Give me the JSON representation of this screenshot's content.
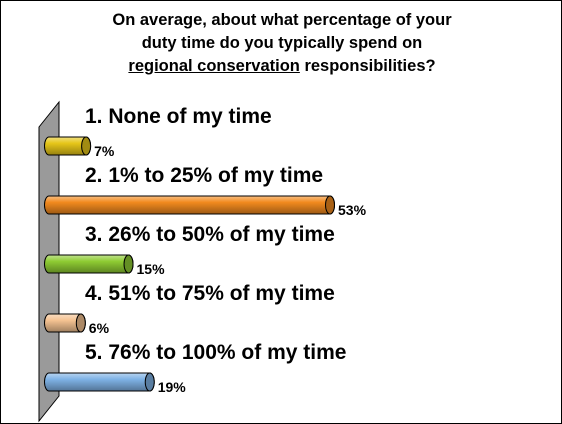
{
  "question": {
    "line1": "On average, about what percentage of your",
    "line2": "duty time do you typically spend on",
    "line3_underlined": "regional conservation",
    "line3_rest": " responsibilities?"
  },
  "chart_data": {
    "type": "bar",
    "orientation": "horizontal",
    "title": "On average, about what percentage of your duty time do you typically spend on regional conservation responsibilities?",
    "categories": [
      "1.  None of my time",
      "2.  1% to 25% of my time",
      "3.  26% to 50% of my time",
      "4.  51% to 75% of my time",
      "5.  76% to 100% of my time"
    ],
    "values": [
      7,
      53,
      15,
      6,
      19
    ],
    "value_labels": [
      "7%",
      "53%",
      "15%",
      "6%",
      "19%"
    ],
    "colors": [
      "#e6c619",
      "#f28a1e",
      "#8fcc33",
      "#f5c392",
      "#7fb3e6"
    ],
    "xlim": [
      0,
      53
    ],
    "grid": false,
    "legend": "none"
  }
}
